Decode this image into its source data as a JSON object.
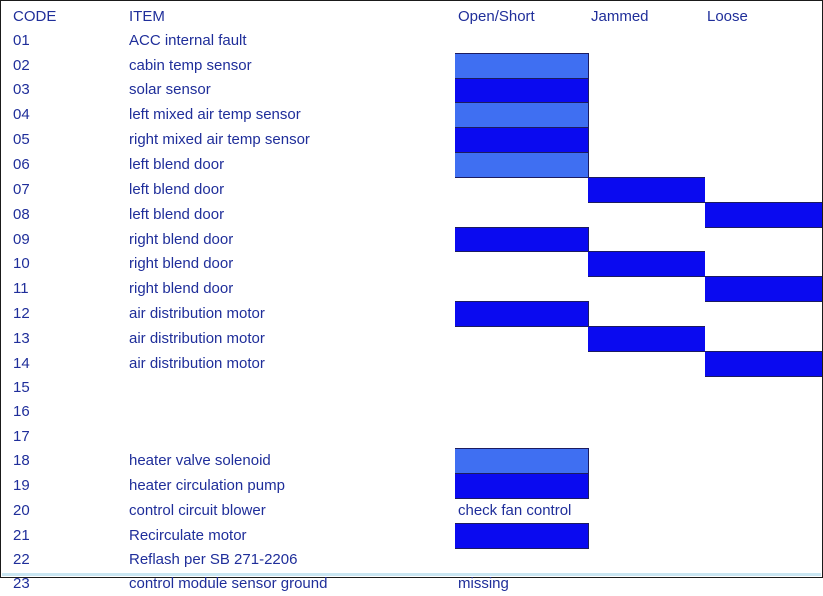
{
  "headers": {
    "code": "CODE",
    "item": "ITEM",
    "open_short": "Open/Short",
    "jammed": "Jammed",
    "loose": "Loose"
  },
  "colors": {
    "bar_dark": "#0a0af0",
    "bar_light": "#3f6ff2",
    "text": "#1f2e9a"
  },
  "rows": [
    {
      "code": "01",
      "item": "ACC internal fault",
      "open_short": "",
      "jammed": "",
      "loose": "",
      "mark": "none",
      "shade": ""
    },
    {
      "code": "02",
      "item": "cabin temp sensor",
      "open_short": "",
      "jammed": "",
      "loose": "",
      "mark": "open_short",
      "shade": "light"
    },
    {
      "code": "03",
      "item": "solar sensor",
      "open_short": "",
      "jammed": "",
      "loose": "",
      "mark": "open_short",
      "shade": "dark"
    },
    {
      "code": "04",
      "item": "left mixed air temp sensor",
      "open_short": "",
      "jammed": "",
      "loose": "",
      "mark": "open_short",
      "shade": "light"
    },
    {
      "code": "05",
      "item": "right mixed air temp sensor",
      "open_short": "",
      "jammed": "",
      "loose": "",
      "mark": "open_short",
      "shade": "dark"
    },
    {
      "code": "06",
      "item": "left blend door",
      "open_short": "",
      "jammed": "",
      "loose": "",
      "mark": "open_short",
      "shade": "light"
    },
    {
      "code": "07",
      "item": "left blend door",
      "open_short": "",
      "jammed": "",
      "loose": "",
      "mark": "jammed",
      "shade": "dark"
    },
    {
      "code": "08",
      "item": "left blend door",
      "open_short": "",
      "jammed": "",
      "loose": "",
      "mark": "loose",
      "shade": "dark"
    },
    {
      "code": "09",
      "item": "right blend door",
      "open_short": "",
      "jammed": "",
      "loose": "",
      "mark": "open_short",
      "shade": "dark"
    },
    {
      "code": "10",
      "item": "right blend door",
      "open_short": "",
      "jammed": "",
      "loose": "",
      "mark": "jammed",
      "shade": "dark"
    },
    {
      "code": "11",
      "item": "right blend door",
      "open_short": "",
      "jammed": "",
      "loose": "",
      "mark": "loose",
      "shade": "dark"
    },
    {
      "code": "12",
      "item": "air distribution motor",
      "open_short": "",
      "jammed": "",
      "loose": "",
      "mark": "open_short",
      "shade": "dark"
    },
    {
      "code": "13",
      "item": "air distribution motor",
      "open_short": "",
      "jammed": "",
      "loose": "",
      "mark": "jammed",
      "shade": "dark"
    },
    {
      "code": "14",
      "item": "air distribution motor",
      "open_short": "",
      "jammed": "",
      "loose": "",
      "mark": "loose",
      "shade": "dark"
    },
    {
      "code": "15",
      "item": "",
      "open_short": "",
      "jammed": "",
      "loose": "",
      "mark": "none",
      "shade": ""
    },
    {
      "code": "16",
      "item": "",
      "open_short": "",
      "jammed": "",
      "loose": "",
      "mark": "none",
      "shade": ""
    },
    {
      "code": "17",
      "item": "",
      "open_short": "",
      "jammed": "",
      "loose": "",
      "mark": "none",
      "shade": ""
    },
    {
      "code": "18",
      "item": "heater valve solenoid",
      "open_short": "",
      "jammed": "",
      "loose": "",
      "mark": "open_short",
      "shade": "light"
    },
    {
      "code": "19",
      "item": "heater circulation pump",
      "open_short": "",
      "jammed": "",
      "loose": "",
      "mark": "open_short",
      "shade": "dark"
    },
    {
      "code": "20",
      "item": "control circuit blower",
      "open_short": "check fan control",
      "jammed": "",
      "loose": "",
      "mark": "none",
      "shade": ""
    },
    {
      "code": "21",
      "item": "Recirculate motor",
      "open_short": "",
      "jammed": "",
      "loose": "",
      "mark": "open_short",
      "shade": "dark"
    },
    {
      "code": "22",
      "item": "Reflash per SB 271-2206",
      "open_short": "",
      "jammed": "",
      "loose": "",
      "mark": "none",
      "shade": ""
    },
    {
      "code": "23",
      "item": "control module sensor ground",
      "open_short": "missing",
      "jammed": "",
      "loose": "",
      "mark": "none",
      "shade": ""
    }
  ]
}
